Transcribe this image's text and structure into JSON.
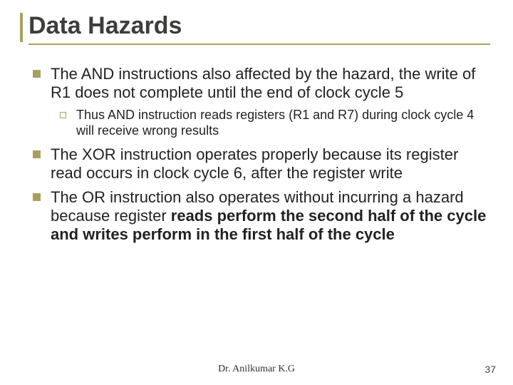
{
  "title": "Data Hazards",
  "bullets": {
    "b1": "The AND instructions also affected by the hazard, the write of R1 does not complete until the end of clock cycle 5",
    "b1s1": "Thus AND instruction reads registers (R1 and R7) during clock cycle 4 will receive wrong results",
    "b2": " The XOR instruction operates properly because its register read occurs in clock cycle 6, after the register write",
    "b3_plain": "The OR instruction also operates without incurring a hazard because register ",
    "b3_bold": "reads perform the second half of the cycle and writes perform in the first half of the cycle"
  },
  "footer": "Dr. Anilkumar K.G",
  "page_number": "37",
  "colors": {
    "accent": "#a9a060",
    "text": "#222222",
    "title": "#3d3d3b"
  }
}
